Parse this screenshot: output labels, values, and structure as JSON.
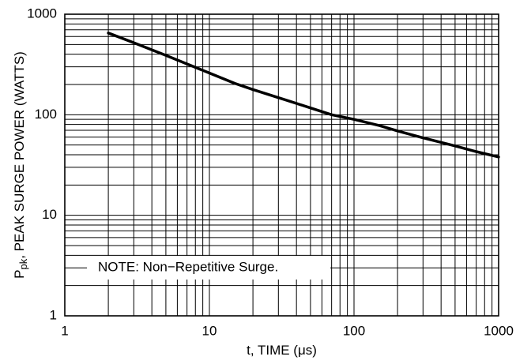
{
  "chart_data": {
    "type": "line",
    "title": "",
    "xlabel": "t, TIME (μs)",
    "ylabel_main": "P",
    "ylabel_sub": "pk",
    "ylabel_rest": ", PEAK SURGE POWER (WATTS)",
    "xscale": "log",
    "yscale": "log",
    "xlim": [
      1,
      1000
    ],
    "ylim": [
      1,
      1000
    ],
    "grid": true,
    "x_ticks": [
      {
        "value": 1,
        "label": "1"
      },
      {
        "value": 10,
        "label": "10"
      },
      {
        "value": 100,
        "label": "100"
      },
      {
        "value": 1000,
        "label": "1000"
      }
    ],
    "y_ticks": [
      {
        "value": 1,
        "label": "1"
      },
      {
        "value": 10,
        "label": "10"
      },
      {
        "value": 100,
        "label": "100"
      },
      {
        "value": 1000,
        "label": "1000"
      }
    ],
    "series": [
      {
        "x": [
          2,
          3,
          5,
          7,
          10,
          15,
          20,
          30,
          50,
          70,
          100,
          150,
          200,
          300,
          500,
          700,
          1000
        ],
        "y": [
          650,
          520,
          390,
          320,
          260,
          205,
          178,
          148,
          117,
          100,
          90,
          78,
          69,
          59,
          49,
          43,
          38
        ]
      }
    ],
    "annotation": "NOTE: Non−Repetitive Surge.",
    "colors": {
      "line": "#000000",
      "grid": "#000000",
      "background": "#ffffff"
    }
  }
}
